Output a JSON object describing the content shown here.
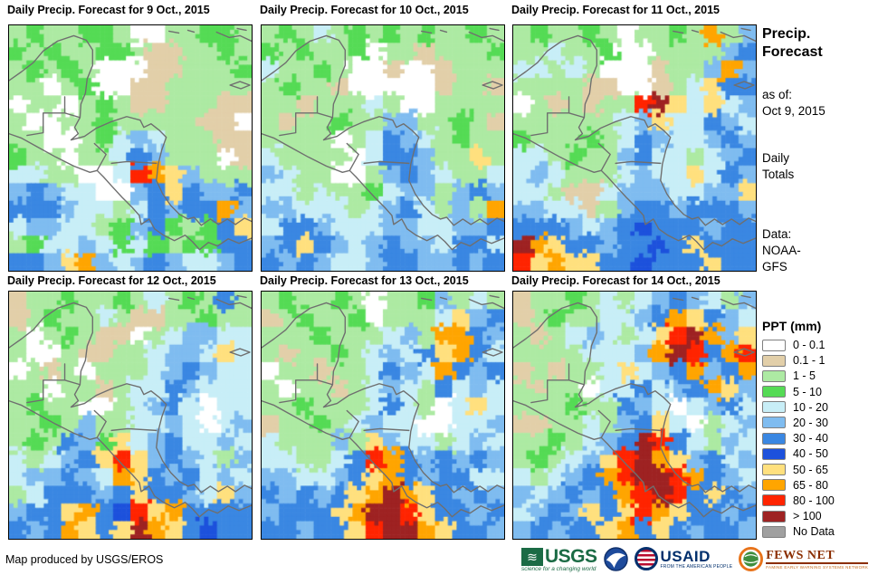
{
  "panels": [
    {
      "title": "Daily  Precip. Forecast for 9 Oct., 2015",
      "grid": [
        "23223320022332",
        "32322332112232",
        "23232000112223",
        "22023001122222",
        "02202321122211",
        "20022322222110",
        "22002345422211",
        "32202246522201",
        "4422004A985222",
        "56544005686556",
        "66654424656695",
        "45544235632368",
        "23445434323366",
        "66589545654456"
      ]
    },
    {
      "title": "Daily  Precip. Forecast for 10 Oct., 2015",
      "grid": [
        "23242323232232",
        "32322302212223",
        "42232001001222",
        "23221000001221",
        "22122242002222",
        "21223225522321",
        "22220246542322",
        "42222046652282",
        "54220025654224",
        "44242234552565",
        "55444245642529",
        "46654445544556",
        "56865456554664",
        "65654456655656"
      ]
    },
    {
      "title": "Daily  Precip. Forecast for 11 Oct., 2015",
      "grid": [
        "23223202232925",
        "22422300222256",
        "44242000122595",
        "22221100124866",
        "0212122AB84845",
        "22222245844654",
        "32223246544565",
        "44232256442456",
        "45422245448465",
        "44211455544558",
        "55441256656665",
        "66654567666566",
        "B9866566768666",
        "A8988667666866"
      ]
    },
    {
      "title": "Daily  Precip. Forecast for 12 Oct., 2015",
      "grid": [
        "12232232423262",
        "12322421122322",
        "20232110245544",
        "20021122455484",
        "02120222456544",
        "22022124465444",
        "23220024564044",
        "22325224454045",
        "23265384564454",
        "424568A8565425",
        "45565498656454",
        "24666568665485",
        "5668967A896666",
        "6569868B986766"
      ]
    },
    {
      "title": "Daily  Precip. Forecast for 13 Oct., 2015",
      "grid": [
        "23223202235242",
        "12322302224856",
        "22232224529965",
        "21223245468964",
        "02212246549656",
        "20221245426454",
        "22322246420484",
        "12232454400445",
        "42225285442454",
        "442246A9656565",
        "55445689656644",
        "6565689B986565",
        "566689BBA86656",
        "665668ABB98665"
      ]
    },
    {
      "title": "Daily  Precip. Forecast for 14 Oct., 2015",
      "grid": [
        "12232424565425",
        "12322445698654",
        "212454248AB958",
        "222244459BA69A",
        "12122484569569",
        "21220446456985",
        "22232265404564",
        "11224256840245",
        "2232456BA64254",
        "232458AB985645",
        "424569ABBA9654",
        "5456569ABA6865",
        "4565868A986656",
        "56566896865665"
      ]
    }
  ],
  "palette": {
    "0": "#FFFFFF",
    "1": "#E2CFA9",
    "2": "#ADEAA3",
    "3": "#55DB55",
    "4": "#C8EEF7",
    "5": "#7FBCF0",
    "6": "#3A87E2",
    "7": "#1C51DC",
    "8": "#FFE07E",
    "9": "#FFA500",
    "A": "#FF2400",
    "B": "#9E2222",
    "C": "#A0A0A0"
  },
  "sidebar": {
    "title_line1": "Precip.",
    "title_line2": "Forecast",
    "as_of_label": "as of:",
    "as_of_date": "Oct 9, 2015",
    "totals_line1": "Daily",
    "totals_line2": "Totals",
    "data_label": "Data:",
    "data_line1": "NOAA-",
    "data_line2": "GFS"
  },
  "legend": {
    "title": "PPT (mm)",
    "entries": [
      {
        "label": "0 - 0.1",
        "color": "#FFFFFF"
      },
      {
        "label": "0.1 - 1",
        "color": "#E2CFA9"
      },
      {
        "label": "1 - 5",
        "color": "#ADEAA3"
      },
      {
        "label": "5 - 10",
        "color": "#55DB55"
      },
      {
        "label": "10 - 20",
        "color": "#C8EEF7"
      },
      {
        "label": "20 - 30",
        "color": "#7FBCF0"
      },
      {
        "label": "30 - 40",
        "color": "#3A87E2"
      },
      {
        "label": "40 - 50",
        "color": "#1C51DC"
      },
      {
        "label": "50 - 65",
        "color": "#FFE07E"
      },
      {
        "label": "65 - 80",
        "color": "#FFA500"
      },
      {
        "label": "80 - 100",
        "color": "#FF2400"
      },
      {
        "label": "> 100",
        "color": "#9E2222"
      },
      {
        "label": "No Data",
        "color": "#A0A0A0"
      }
    ]
  },
  "footer": {
    "credit": "Map produced by USGS/EROS",
    "logos": {
      "usgs": {
        "name": "USGS",
        "tagline": "science for a changing world",
        "color": "#1B6B45"
      },
      "noaa": {
        "color": "#1E4B9C"
      },
      "usaid": {
        "name": "USAID",
        "tagline": "FROM THE AMERICAN PEOPLE",
        "color": "#002F6C",
        "accent": "#BA0C2F"
      },
      "fewsnet": {
        "name": "FEWS NET",
        "tagline": "FAMINE EARLY WARNING SYSTEMS NETWORK",
        "color": "#8B2E00",
        "accent": "#E8731A"
      }
    }
  }
}
